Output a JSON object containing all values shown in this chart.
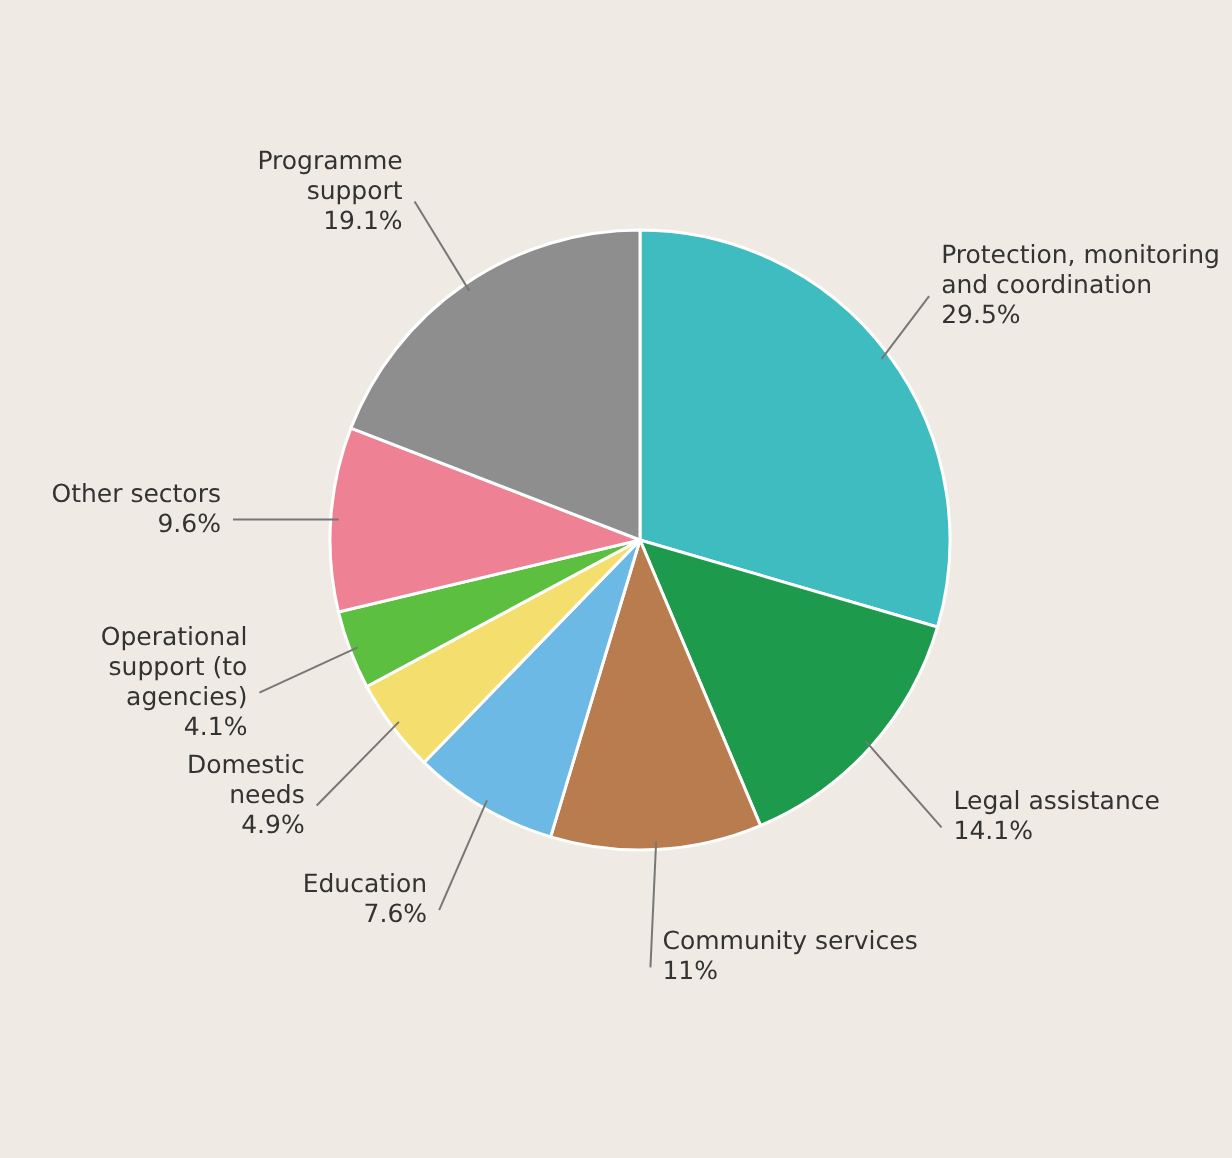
{
  "chart_data": {
    "type": "pie",
    "categories": [
      "Protection, monitoring and coordination",
      "Legal assistance",
      "Community services",
      "Education",
      "Domestic needs",
      "Operational support (to agencies)",
      "Other sectors",
      "Programme support"
    ],
    "values": [
      29.5,
      14.1,
      11,
      7.6,
      4.9,
      4.1,
      9.6,
      19.1
    ],
    "value_labels": [
      "29.5%",
      "14.1%",
      "11%",
      "7.6%",
      "4.9%",
      "4.1%",
      "9.6%",
      "19.1%"
    ],
    "colors": [
      "#3fbcbf",
      "#1e9a4c",
      "#b97c4e",
      "#6cb9e6",
      "#f3de6e",
      "#5cbf3f",
      "#ee8294",
      "#8e8e8e"
    ]
  }
}
